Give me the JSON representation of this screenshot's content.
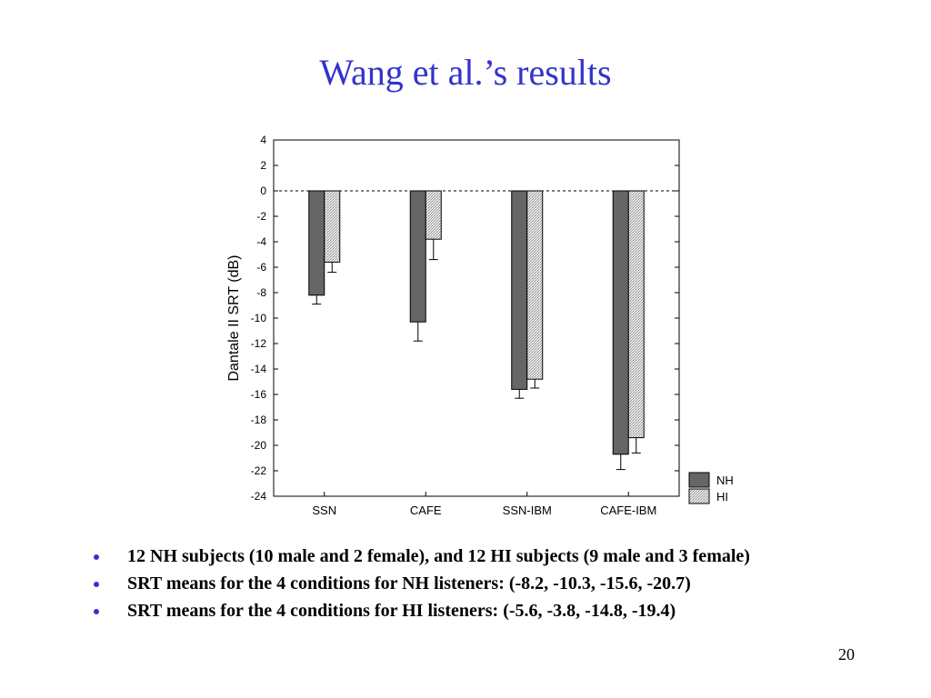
{
  "slide": {
    "title": "Wang et al.’s results",
    "bullets": [
      "12 NH subjects (10 male and 2 female), and 12 HI subjects (9 male and 3 female)",
      "SRT means for the 4 conditions for NH listeners: (-8.2, -10.3, -15.6, -20.7)",
      "SRT means for the 4 conditions for HI listeners:  (-5.6, -3.8, -14.8, -19.4)"
    ],
    "page_number": "20"
  },
  "colors": {
    "title": "#3333cc",
    "bullet": "#3333cc",
    "nh_bar": "#666666",
    "hi_bar": "#d9d9d9"
  },
  "chart_data": {
    "type": "bar",
    "categories": [
      "SSN",
      "CAFE",
      "SSN-IBM",
      "CAFE-IBM"
    ],
    "series": [
      {
        "name": "NH",
        "values": [
          -8.2,
          -10.3,
          -15.6,
          -20.7
        ],
        "error_low": [
          -8.9,
          -11.8,
          -16.3,
          -21.9
        ]
      },
      {
        "name": "HI",
        "values": [
          -5.6,
          -3.8,
          -14.8,
          -19.4
        ],
        "error_low": [
          -6.4,
          -5.4,
          -15.5,
          -20.6
        ]
      }
    ],
    "ylabel": "Dantale II SRT (dB)",
    "ylim": [
      -24,
      4
    ],
    "yticks": [
      4,
      2,
      0,
      -2,
      -4,
      -6,
      -8,
      -10,
      -12,
      -14,
      -16,
      -18,
      -20,
      -22,
      -24
    ],
    "reference_line": 0,
    "legend": "bottom-right, outside plot",
    "grid": false
  }
}
